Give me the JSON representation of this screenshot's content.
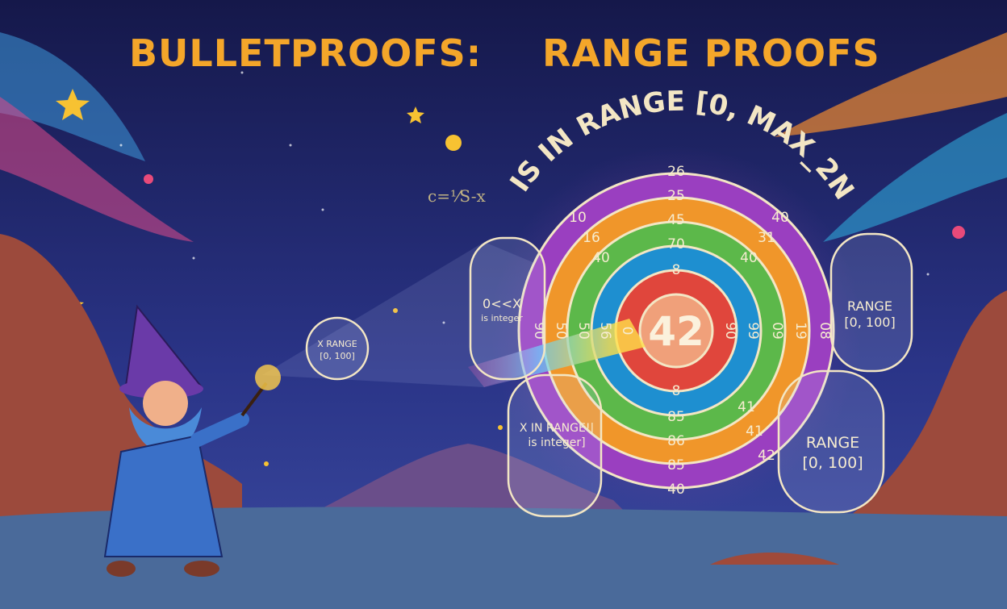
{
  "title": {
    "left": "BULLETPROOFS:",
    "right": "RANGE PROOFS"
  },
  "arc_text": "IS IN RANGE [0, MAX_2N",
  "center_value": "42",
  "ring_labels": {
    "top": [
      "26",
      "25",
      "45",
      "70",
      "8"
    ],
    "bottom": [
      "8",
      "85",
      "86",
      "85",
      "40"
    ],
    "upper_left": [
      "10",
      "16",
      "40"
    ],
    "upper_right": [
      "40",
      "31",
      "40"
    ],
    "lower_right": [
      "41",
      "41",
      "42"
    ],
    "side_left": [
      "90",
      "50",
      "50",
      "56",
      "0"
    ],
    "side_right": [
      "90",
      "99",
      "09",
      "19",
      "08"
    ]
  },
  "bubbles": [
    {
      "line1": "X RANGE",
      "line2": "[0, 100]"
    },
    {
      "line1": "0<<X",
      "line2": "is integer"
    },
    {
      "line1": "X IN RANGE!|",
      "line2": "is integer]"
    },
    {
      "line1": "RANGE",
      "line2": "[0, 100]"
    },
    {
      "line1": "RANGE",
      "line2": "[0, 100]"
    }
  ],
  "math_scribble": "c=⅟S-x",
  "colors": {
    "sky": "#1b1f5c",
    "title": "#f4a62a",
    "purple": "#9a3fc0",
    "orange": "#f0962a",
    "green": "#5cb84a",
    "blue": "#1e8fd0",
    "red": "#e0463c"
  }
}
